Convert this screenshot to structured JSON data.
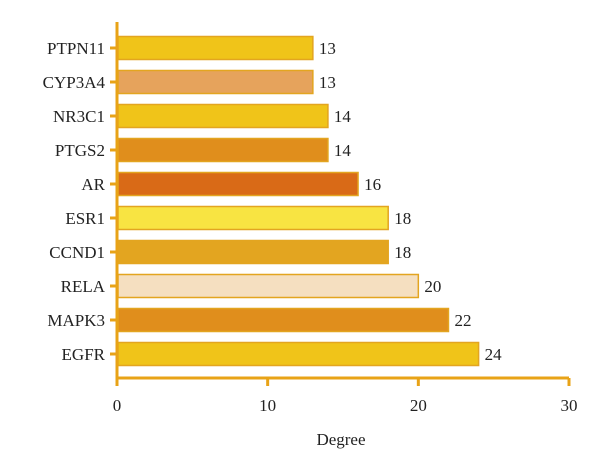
{
  "chart_data": {
    "type": "bar",
    "orientation": "horizontal",
    "categories": [
      "PTPN11",
      "CYP3A4",
      "NR3C1",
      "PTGS2",
      "AR",
      "ESR1",
      "CCND1",
      "RELA",
      "MAPK3",
      "EGFR"
    ],
    "values": [
      13,
      13,
      14,
      14,
      16,
      18,
      18,
      20,
      22,
      24
    ],
    "bar_colors": [
      "#F0C419",
      "#E6A35C",
      "#F0C419",
      "#E08E1C",
      "#D96A17",
      "#F8E442",
      "#E3A520",
      "#F5DFC0",
      "#E08E1C",
      "#F0C419"
    ],
    "bar_outline": "#E3A520",
    "axis_color": "#E8A317",
    "xlabel": "Degree",
    "ylabel": "",
    "title": "",
    "xlim": [
      0,
      30
    ],
    "xticks": [
      0,
      10,
      20,
      30
    ],
    "grid": false,
    "data_labels": true
  }
}
